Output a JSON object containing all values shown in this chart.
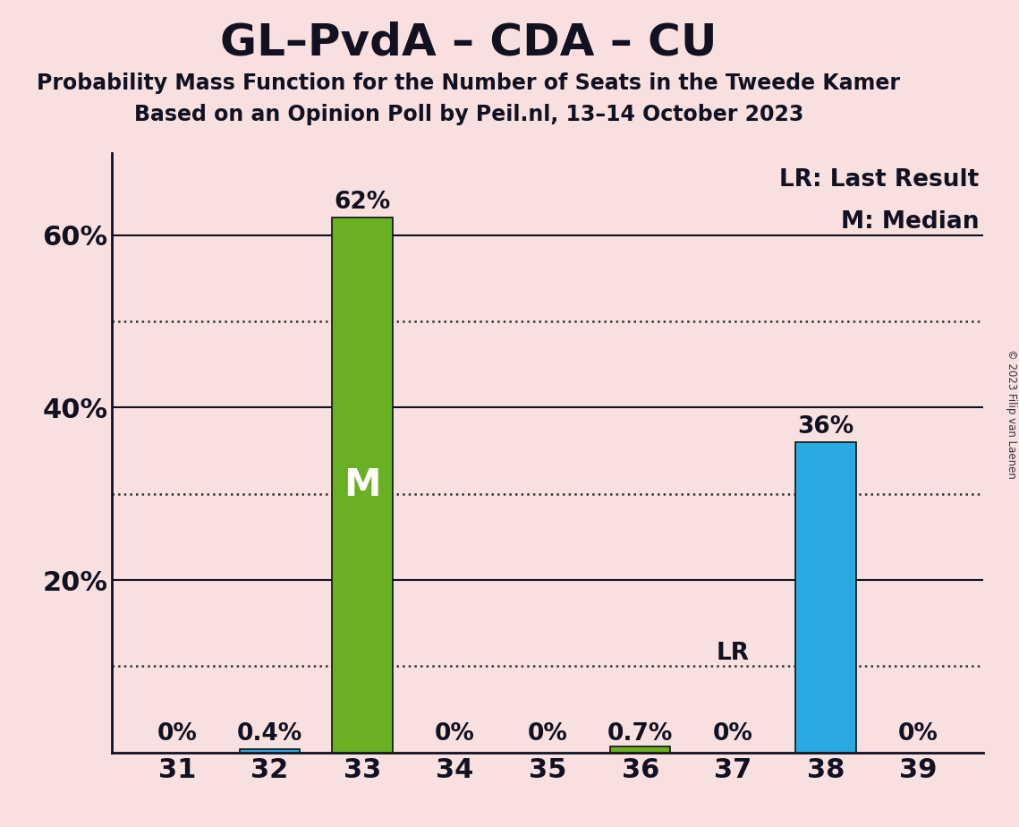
{
  "title": "GL–PvdA – CDA – CU",
  "subtitle1": "Probability Mass Function for the Number of Seats in the Tweede Kamer",
  "subtitle2": "Based on an Opinion Poll by Peil.nl, 13–14 October 2023",
  "copyright": "© 2023 Filip van Laenen",
  "legend_lr": "LR: Last Result",
  "legend_m": "M: Median",
  "seats": [
    31,
    32,
    33,
    34,
    35,
    36,
    37,
    38,
    39
  ],
  "values": [
    0.0,
    0.004,
    0.62,
    0.0,
    0.0,
    0.007,
    0.0,
    0.36,
    0.0
  ],
  "bar_colors": [
    "none",
    "#29abe2",
    "#6ab023",
    "none",
    "none",
    "#6ab023",
    "#29abe2",
    "#29abe2",
    "none"
  ],
  "median_seat": 33,
  "lr_seat": 37,
  "label_texts": [
    "0%",
    "0.4%",
    "62%",
    "0%",
    "0%",
    "0.7%",
    "0%",
    "36%",
    "0%"
  ],
  "background_color": "#f9e0e0",
  "bar_edge_color": "#111111",
  "text_color": "#111122",
  "ylim": [
    0,
    0.695
  ],
  "solid_yticks": [
    0.2,
    0.4,
    0.6
  ],
  "solid_ytick_labels": [
    "20%",
    "40%",
    "60%"
  ],
  "dotted_yticks": [
    0.1,
    0.3,
    0.5
  ],
  "grid_color": "#333333",
  "title_fontsize": 36,
  "subtitle_fontsize": 17,
  "axis_tick_fontsize": 22,
  "bar_label_fontsize": 19,
  "legend_fontsize": 19,
  "median_label": "M",
  "lr_label": "LR",
  "bar_width": 0.65
}
